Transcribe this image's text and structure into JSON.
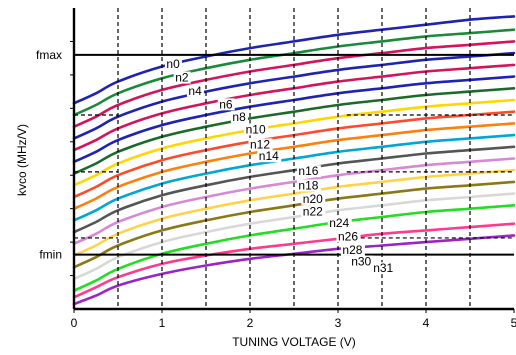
{
  "chart_data": {
    "type": "line",
    "xlabel": "TUNING VOLTAGE (V)",
    "ylabel": "kvco (MHz/V)",
    "xlim": [
      0,
      5
    ],
    "ylim": [
      0,
      18
    ],
    "x_ticks": [
      "0",
      "1",
      "2",
      "3",
      "4",
      "5"
    ],
    "y_tick_labels": [
      {
        "label": "fmax",
        "y": 15.2
      },
      {
        "label": "fmin",
        "y": 3.25
      }
    ],
    "grid": "vertical dashed at each 0.5 V, horizontal dashed short segments",
    "x": [
      0,
      0.25,
      0.5,
      1,
      1.5,
      2,
      2.5,
      3,
      3.5,
      4,
      4.5,
      5
    ],
    "series": [
      {
        "name": "n0",
        "color": "#1f23b4",
        "values": [
          12.3,
          12.9,
          13.6,
          14.5,
          15.1,
          15.6,
          16.0,
          16.4,
          16.7,
          17.0,
          17.3,
          17.5
        ]
      },
      {
        "name": "",
        "color": "#1a8a3a",
        "values": [
          11.6,
          12.2,
          12.9,
          13.8,
          14.4,
          14.9,
          15.3,
          15.7,
          16.0,
          16.3,
          16.5,
          16.7
        ]
      },
      {
        "name": "n2",
        "color": "#d4145a",
        "values": [
          10.9,
          11.5,
          12.2,
          13.1,
          13.7,
          14.2,
          14.6,
          15.0,
          15.3,
          15.6,
          15.8,
          16.0
        ]
      },
      {
        "name": "",
        "color": "#1f23b4",
        "values": [
          10.2,
          10.8,
          11.5,
          12.4,
          13.0,
          13.5,
          13.9,
          14.3,
          14.6,
          14.9,
          15.1,
          15.3
        ]
      },
      {
        "name": "n4",
        "color": "#d4145a",
        "values": [
          9.5,
          10.1,
          10.8,
          11.7,
          12.3,
          12.8,
          13.2,
          13.6,
          13.9,
          14.2,
          14.4,
          14.6
        ]
      },
      {
        "name": "n6",
        "color": "#1f23b4",
        "values": [
          8.8,
          9.4,
          10.1,
          11.0,
          11.6,
          12.1,
          12.5,
          12.9,
          13.2,
          13.5,
          13.7,
          13.9
        ]
      },
      {
        "name": "n8",
        "color": "#1a6a2a",
        "values": [
          8.1,
          8.7,
          9.4,
          10.3,
          10.9,
          11.4,
          11.8,
          12.2,
          12.5,
          12.8,
          13.0,
          13.2
        ]
      },
      {
        "name": "n10",
        "color": "#ffd700",
        "values": [
          7.4,
          8.0,
          8.7,
          9.6,
          10.2,
          10.7,
          11.1,
          11.5,
          11.8,
          12.1,
          12.3,
          12.5
        ]
      },
      {
        "name": "n12",
        "color": "#ff4a2a",
        "values": [
          6.7,
          7.3,
          8.0,
          8.9,
          9.5,
          10.0,
          10.4,
          10.8,
          11.1,
          11.4,
          11.6,
          11.8
        ]
      },
      {
        "name": "n14",
        "color": "#ff7f0e",
        "values": [
          6.0,
          6.6,
          7.3,
          8.2,
          8.8,
          9.3,
          9.7,
          10.1,
          10.4,
          10.7,
          10.9,
          11.1
        ]
      },
      {
        "name": "n16",
        "color": "#00a6d6",
        "values": [
          5.3,
          5.9,
          6.6,
          7.5,
          8.1,
          8.6,
          9.0,
          9.4,
          9.7,
          10.0,
          10.2,
          10.4
        ]
      },
      {
        "name": "n18",
        "color": "#555555",
        "values": [
          4.6,
          5.2,
          5.9,
          6.8,
          7.4,
          7.9,
          8.3,
          8.7,
          9.0,
          9.3,
          9.5,
          9.7
        ]
      },
      {
        "name": "n20",
        "color": "#d68ad6",
        "values": [
          3.9,
          4.5,
          5.2,
          6.1,
          6.7,
          7.2,
          7.6,
          8.0,
          8.3,
          8.6,
          8.8,
          9.0
        ]
      },
      {
        "name": "n22",
        "color": "#ffd24a",
        "values": [
          3.2,
          3.8,
          4.5,
          5.4,
          6.0,
          6.5,
          6.9,
          7.3,
          7.6,
          7.9,
          8.1,
          8.3
        ]
      },
      {
        "name": "n24",
        "color": "#8b7a14",
        "values": [
          2.5,
          3.1,
          3.8,
          4.7,
          5.3,
          5.8,
          6.2,
          6.6,
          6.9,
          7.2,
          7.4,
          7.6
        ]
      },
      {
        "name": "n26",
        "color": "#d8d8d8",
        "values": [
          1.8,
          2.4,
          3.1,
          4.0,
          4.6,
          5.1,
          5.5,
          5.9,
          6.2,
          6.5,
          6.7,
          6.9
        ]
      },
      {
        "name": "n28",
        "color": "#22dd22",
        "values": [
          1.1,
          1.7,
          2.4,
          3.3,
          3.9,
          4.4,
          4.8,
          5.2,
          5.5,
          5.8,
          6.0,
          6.2
        ]
      },
      {
        "name": "n30",
        "color": "#ff3a8a",
        "values": [
          0.7,
          1.3,
          1.9,
          2.7,
          3.2,
          3.6,
          3.9,
          4.2,
          4.5,
          4.7,
          4.9,
          5.1
        ]
      },
      {
        "name": "n31",
        "color": "#9a24c8",
        "values": [
          0.3,
          0.8,
          1.4,
          2.1,
          2.6,
          3.0,
          3.3,
          3.6,
          3.8,
          4.0,
          4.2,
          4.4
        ]
      }
    ],
    "curve_labels": [
      {
        "text": "n0",
        "x": 1.05,
        "y": 14.4
      },
      {
        "text": "n2",
        "x": 1.15,
        "y": 13.6
      },
      {
        "text": "n4",
        "x": 1.3,
        "y": 12.8
      },
      {
        "text": "n6",
        "x": 1.65,
        "y": 12.0
      },
      {
        "text": "n8",
        "x": 1.8,
        "y": 11.25
      },
      {
        "text": "n10",
        "x": 1.95,
        "y": 10.5
      },
      {
        "text": "n12",
        "x": 2.0,
        "y": 9.6
      },
      {
        "text": "n14",
        "x": 2.1,
        "y": 8.9
      },
      {
        "text": "n16",
        "x": 2.55,
        "y": 8.0
      },
      {
        "text": "n18",
        "x": 2.55,
        "y": 7.15
      },
      {
        "text": "n20",
        "x": 2.6,
        "y": 6.35
      },
      {
        "text": "n22",
        "x": 2.6,
        "y": 5.6
      },
      {
        "text": "n24",
        "x": 2.9,
        "y": 4.9
      },
      {
        "text": "n26",
        "x": 3.0,
        "y": 4.1
      },
      {
        "text": "n28",
        "x": 3.05,
        "y": 3.3
      },
      {
        "text": "n30",
        "x": 3.15,
        "y": 2.6
      },
      {
        "text": "n31",
        "x": 3.4,
        "y": 2.2
      }
    ]
  }
}
